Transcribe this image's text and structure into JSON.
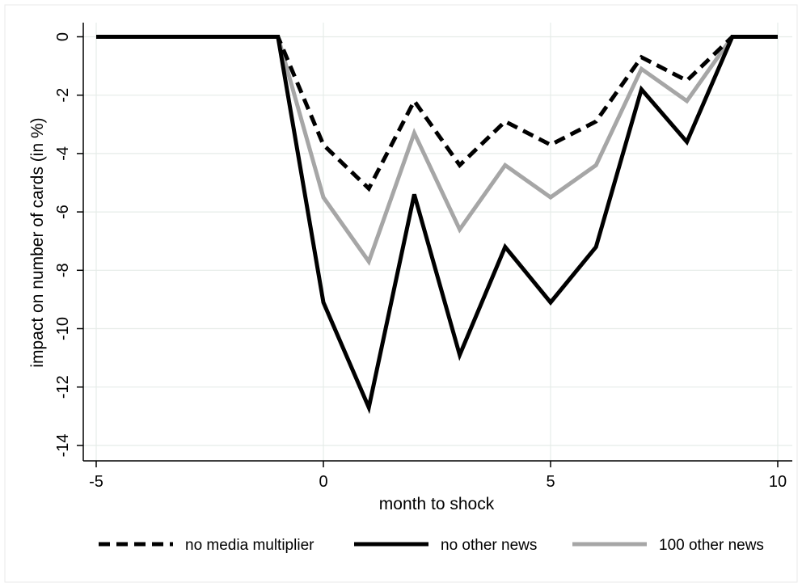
{
  "chart_data": {
    "type": "line",
    "title": "",
    "xlabel": "month to shock",
    "ylabel": "impact on number of cards (in %)",
    "xlim": [
      -5,
      10
    ],
    "ylim": [
      -14.5,
      0.6
    ],
    "x_ticks": [
      -5,
      0,
      5,
      10
    ],
    "y_ticks": [
      0,
      -2,
      -4,
      -6,
      -8,
      -10,
      -12,
      -14
    ],
    "grid": true,
    "legend_position": "bottom",
    "x": [
      -5,
      -4,
      -3,
      -2,
      -1,
      0,
      1,
      2,
      3,
      4,
      5,
      6,
      7,
      8,
      9,
      10
    ],
    "series": [
      {
        "name": "no media multiplier",
        "style": "dashed",
        "color": "#000000",
        "values": [
          0,
          0,
          0,
          0,
          0,
          -3.7,
          -5.2,
          -2.2,
          -4.4,
          -2.9,
          -3.7,
          -2.9,
          -0.7,
          -1.5,
          0,
          0
        ]
      },
      {
        "name": "no other news",
        "style": "solid",
        "color": "#000000",
        "values": [
          0,
          0,
          0,
          0,
          0,
          -9.1,
          -12.7,
          -5.4,
          -10.9,
          -7.2,
          -9.1,
          -7.2,
          -1.8,
          -3.6,
          0,
          0
        ]
      },
      {
        "name": "100 other news",
        "style": "solid",
        "color": "#a6a6a6",
        "values": [
          0,
          0,
          0,
          0,
          0,
          -5.5,
          -7.7,
          -3.3,
          -6.6,
          -4.4,
          -5.5,
          -4.4,
          -1.1,
          -2.2,
          0,
          0
        ]
      }
    ]
  }
}
